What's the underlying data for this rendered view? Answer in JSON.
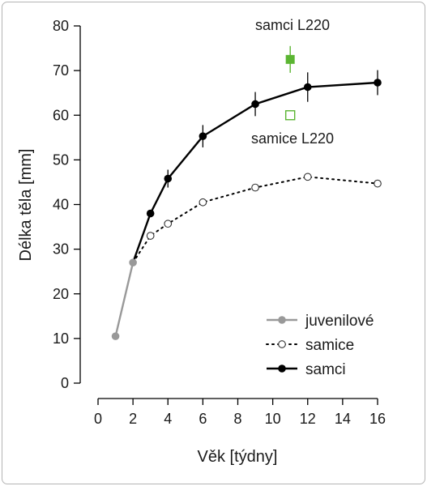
{
  "chart_data": {
    "type": "line",
    "xlabel": "Věk [týdny]",
    "ylabel": "Délka těla [mm]",
    "xlim": [
      0,
      16
    ],
    "ylim": [
      0,
      80
    ],
    "xticks": [
      "0",
      "2",
      "4",
      "6",
      "8",
      "10",
      "12",
      "14",
      "16"
    ],
    "yticks": [
      "0",
      "10",
      "20",
      "30",
      "40",
      "50",
      "60",
      "70",
      "80"
    ],
    "grid": false,
    "legend_position": "bottom-right",
    "series": [
      {
        "name": "juvenilové",
        "color": "#999999",
        "marker": "filled-circle",
        "line": "solid",
        "x": [
          1,
          2
        ],
        "y": [
          10.5,
          27
        ]
      },
      {
        "name": "samice",
        "color": "#000000",
        "marker": "open-circle",
        "line": "dotted",
        "x": [
          2,
          3,
          4,
          6,
          9,
          12,
          16
        ],
        "y": [
          27,
          33,
          35.7,
          40.5,
          43.8,
          46.2,
          44.7
        ]
      },
      {
        "name": "samci",
        "color": "#000000",
        "marker": "filled-circle",
        "line": "solid",
        "x": [
          2,
          3,
          4,
          6,
          9,
          12,
          16
        ],
        "y": [
          27,
          38,
          45.8,
          55.3,
          62.5,
          66.3,
          67.3
        ],
        "error": [
          0,
          0,
          2,
          2.5,
          2.7,
          3.3,
          2.8
        ]
      }
    ],
    "annotations": [
      {
        "text": "samci L220",
        "x": 11,
        "y": 72.5,
        "error": 3,
        "marker": "filled-square",
        "color": "#5bb532"
      },
      {
        "text": "samice L220",
        "x": 11,
        "y": 60,
        "error": 0,
        "marker": "open-square",
        "color": "#5bb532"
      }
    ]
  }
}
